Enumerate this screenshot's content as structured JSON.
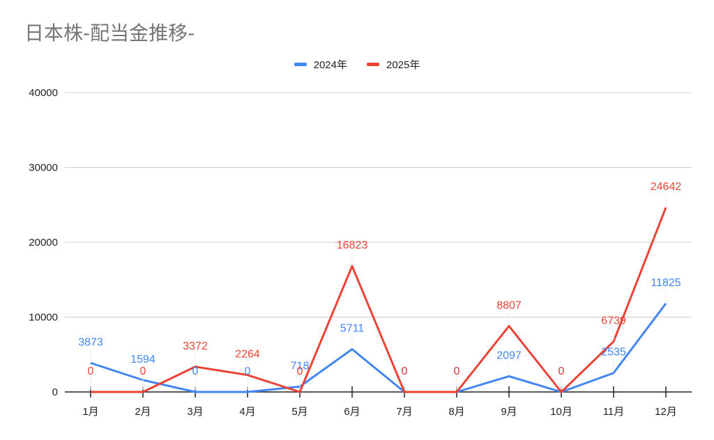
{
  "chart_data": {
    "type": "line",
    "title": "日本株-配当金推移-",
    "xlabel": "",
    "ylabel": "",
    "categories": [
      "1月",
      "2月",
      "3月",
      "4月",
      "5月",
      "6月",
      "7月",
      "8月",
      "9月",
      "10月",
      "11月",
      "12月"
    ],
    "series": [
      {
        "name": "2024年",
        "color": "#4285f4",
        "values": [
          3873,
          1594,
          0,
          0,
          718,
          5711,
          0,
          0,
          2097,
          0,
          2535,
          11825
        ]
      },
      {
        "name": "2025年",
        "color": "#ea4335",
        "values": [
          0,
          0,
          3372,
          2264,
          0,
          16823,
          0,
          0,
          8807,
          0,
          6739,
          24642
        ]
      }
    ],
    "ylim": [
      0,
      40000
    ],
    "yticks": [
      0,
      10000,
      20000,
      30000,
      40000
    ],
    "grid": true,
    "legend_position": "top"
  },
  "title": "日本株-配当金推移-",
  "legend": [
    {
      "label": "2024年",
      "color": "#4285f4"
    },
    {
      "label": "2025年",
      "color": "#ea4335"
    }
  ]
}
